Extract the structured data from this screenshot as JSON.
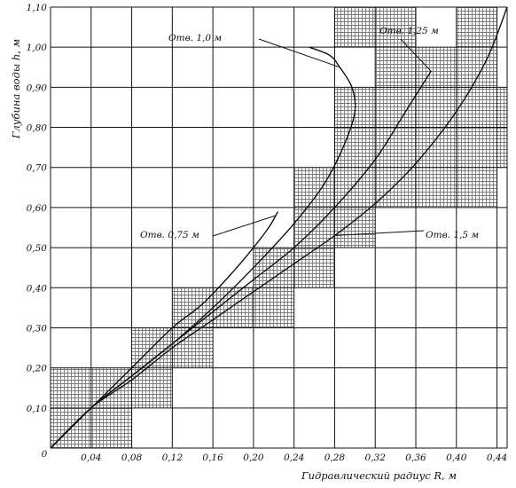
{
  "chart_data": {
    "type": "line",
    "title": "",
    "xlabel": "Гидравлический радиус R, м",
    "ylabel": "Глубина воды h, м",
    "xlim": [
      0,
      0.45
    ],
    "ylim": [
      0,
      1.1
    ],
    "grid": true,
    "origin_label": "0",
    "x_ticks": [
      "0,04",
      "0,08",
      "0,12",
      "0,16",
      "0,20",
      "0,24",
      "0,28",
      "0,32",
      "0,36",
      "0,40",
      "0,44"
    ],
    "y_ticks": [
      "0,10",
      "0,20",
      "0,30",
      "0,40",
      "0,50",
      "0,60",
      "0,70",
      "0,80",
      "0,90",
      "1,00",
      "1,10"
    ],
    "series": [
      {
        "name": "Отв. 0,75 м",
        "x": [
          0,
          0.04,
          0.08,
          0.12,
          0.15,
          0.18,
          0.2,
          0.215,
          0.222,
          0.224
        ],
        "y": [
          0,
          0.1,
          0.2,
          0.3,
          0.36,
          0.44,
          0.5,
          0.55,
          0.58,
          0.59
        ]
      },
      {
        "name": "Отв. 1,0 м",
        "x": [
          0,
          0.04,
          0.08,
          0.12,
          0.16,
          0.2,
          0.24,
          0.27,
          0.29,
          0.3,
          0.297,
          0.285,
          0.275,
          0.255
        ],
        "y": [
          0,
          0.1,
          0.18,
          0.26,
          0.35,
          0.45,
          0.56,
          0.66,
          0.76,
          0.84,
          0.9,
          0.95,
          0.98,
          1.0
        ]
      },
      {
        "name": "Отв. 1,25 м",
        "x": [
          0,
          0.04,
          0.08,
          0.12,
          0.16,
          0.2,
          0.24,
          0.28,
          0.32,
          0.35,
          0.375
        ],
        "y": [
          0,
          0.1,
          0.18,
          0.26,
          0.34,
          0.42,
          0.5,
          0.6,
          0.72,
          0.84,
          0.94
        ]
      },
      {
        "name": "Отв. 1,5 м",
        "x": [
          0,
          0.04,
          0.08,
          0.12,
          0.16,
          0.2,
          0.24,
          0.28,
          0.32,
          0.36,
          0.4,
          0.43,
          0.45
        ],
        "y": [
          0,
          0.1,
          0.17,
          0.25,
          0.32,
          0.39,
          0.46,
          0.53,
          0.61,
          0.71,
          0.84,
          0.97,
          1.1
        ]
      }
    ],
    "annotations": [
      {
        "text": "Отв.  1,0 м",
        "series": 1
      },
      {
        "text": "Отв.  1,25 м",
        "series": 2
      },
      {
        "text": "Отв.  0,75 м",
        "series": 0
      },
      {
        "text": "Отв.  1,5 м",
        "series": 3
      }
    ],
    "colors": {
      "ink": "#111111",
      "hatch": "#8c8c8c",
      "paper": "#ffffff"
    }
  }
}
